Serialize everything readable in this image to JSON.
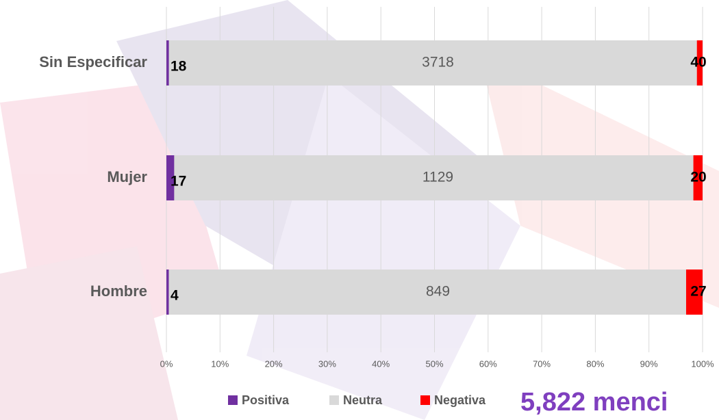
{
  "chart_data": {
    "type": "stacked-bar-100",
    "categories": [
      "Sin Especificar",
      "Mujer",
      "Hombre"
    ],
    "series": [
      {
        "name": "Positiva",
        "color": "#7030a0",
        "values": [
          18,
          17,
          4
        ]
      },
      {
        "name": "Neutra",
        "color": "#d9d9d9",
        "values": [
          3718,
          1129,
          849
        ]
      },
      {
        "name": "Negativa",
        "color": "#ff0000",
        "values": [
          40,
          20,
          27
        ]
      }
    ],
    "xlim": [
      0,
      100
    ],
    "xticks": [
      {
        "value": 0,
        "label": "0%"
      },
      {
        "value": 10,
        "label": "10%"
      },
      {
        "value": 20,
        "label": "20%"
      },
      {
        "value": 30,
        "label": "30%"
      },
      {
        "value": 40,
        "label": "40%"
      },
      {
        "value": 50,
        "label": "50%"
      },
      {
        "value": 60,
        "label": "60%"
      },
      {
        "value": 70,
        "label": "70%"
      },
      {
        "value": 80,
        "label": "80%"
      },
      {
        "value": 90,
        "label": "90%"
      },
      {
        "value": 100,
        "label": "100%"
      }
    ],
    "grid": true,
    "total_label": "5,822 menci"
  }
}
